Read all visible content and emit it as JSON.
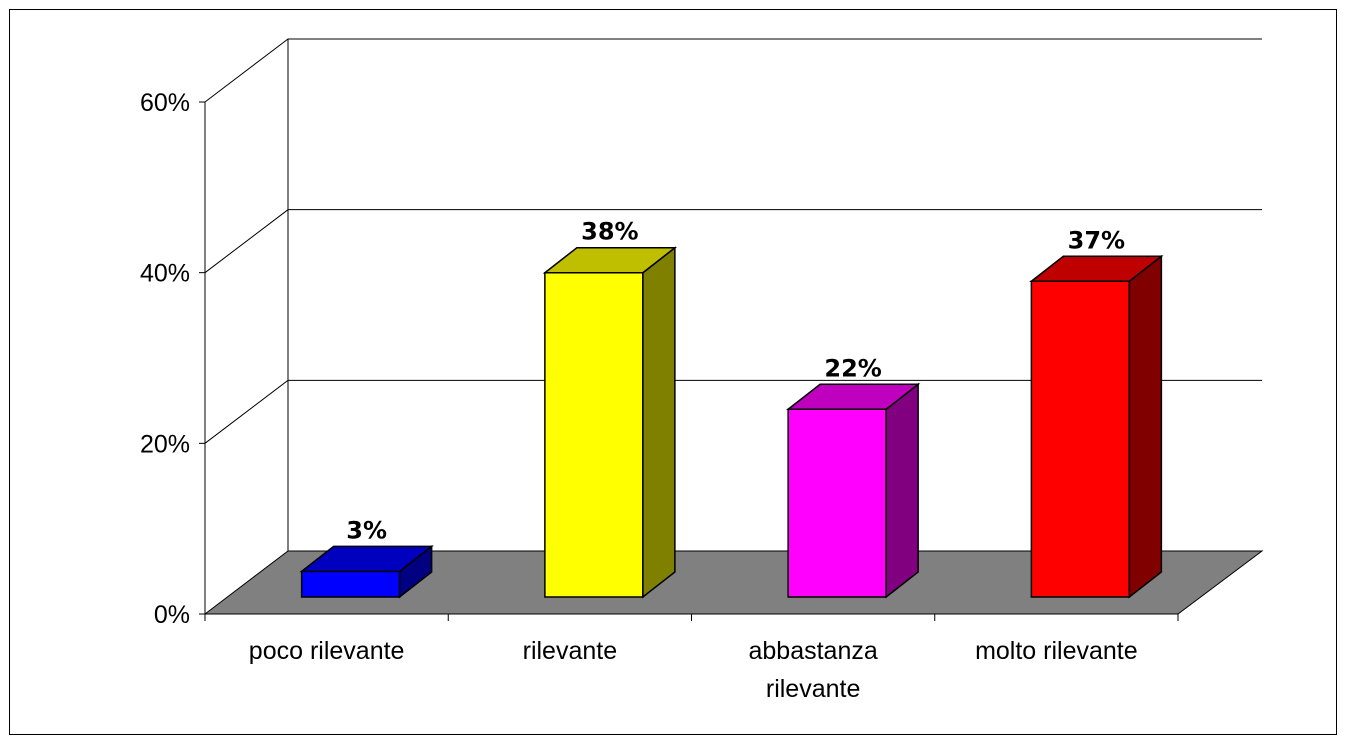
{
  "chart_data": {
    "type": "bar3d",
    "categories": [
      "poco rilevante",
      "rilevante",
      "abbastanza rilevante",
      "molto rilevante"
    ],
    "values": [
      3,
      38,
      22,
      37
    ],
    "value_labels": [
      "3%",
      "38%",
      "22%",
      "37%"
    ],
    "colors": [
      "#0000ff",
      "#ffff00",
      "#ff00ff",
      "#ff0000"
    ],
    "ylim": [
      0,
      60
    ],
    "yticks": [
      {
        "value": 0,
        "label": "0%"
      },
      {
        "value": 20,
        "label": "20%"
      },
      {
        "value": 40,
        "label": "40%"
      },
      {
        "value": 60,
        "label": "60%"
      }
    ],
    "grid": true
  }
}
